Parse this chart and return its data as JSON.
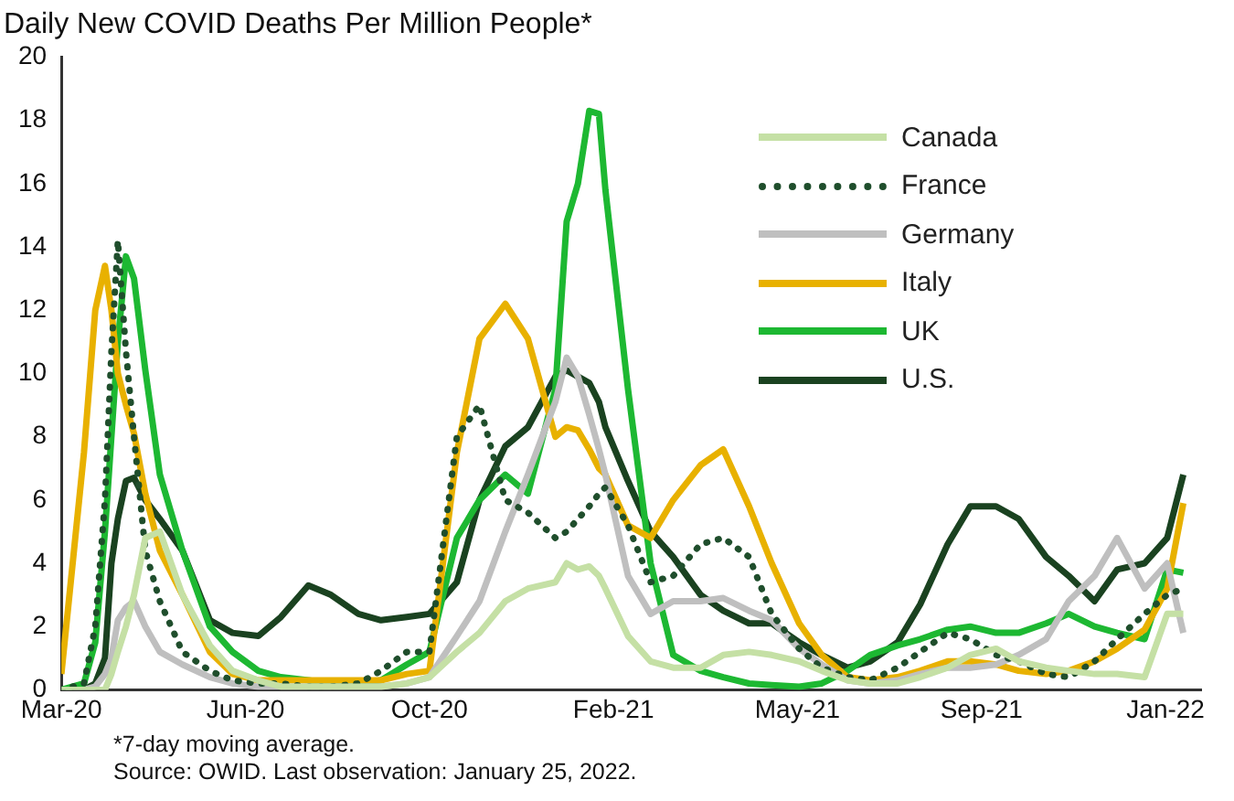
{
  "chart_data": {
    "type": "line",
    "title": "Daily New COVID Deaths Per Million People*",
    "annotations": [
      "*7-day moving average.",
      "Source: OWID. Last observation: January 25, 2022."
    ],
    "x": [
      "2020-03-01",
      "2020-03-15",
      "2020-03-22",
      "2020-03-28",
      "2020-04-01",
      "2020-04-05",
      "2020-04-10",
      "2020-04-15",
      "2020-04-22",
      "2020-05-01",
      "2020-05-15",
      "2020-06-01",
      "2020-06-15",
      "2020-07-01",
      "2020-07-15",
      "2020-08-01",
      "2020-08-15",
      "2020-09-01",
      "2020-09-15",
      "2020-10-01",
      "2020-10-15",
      "2020-11-01",
      "2020-11-15",
      "2020-12-01",
      "2020-12-15",
      "2021-01-01",
      "2021-01-08",
      "2021-01-15",
      "2021-01-22",
      "2021-01-28",
      "2021-02-01",
      "2021-02-15",
      "2021-03-01",
      "2021-03-15",
      "2021-04-01",
      "2021-04-15",
      "2021-05-01",
      "2021-05-15",
      "2021-06-01",
      "2021-06-15",
      "2021-07-01",
      "2021-07-15",
      "2021-08-01",
      "2021-08-15",
      "2021-09-01",
      "2021-09-15",
      "2021-10-01",
      "2021-10-15",
      "2021-11-01",
      "2021-11-15",
      "2021-12-01",
      "2021-12-15",
      "2022-01-01",
      "2022-01-15",
      "2022-01-25"
    ],
    "series": [
      {
        "name": "Canada",
        "color": "#c5e0a5",
        "values": [
          0,
          0,
          0,
          0,
          0.5,
          1.2,
          2.0,
          3.0,
          4.8,
          5.0,
          3.0,
          1.4,
          0.6,
          0.3,
          0.1,
          0.1,
          0.1,
          0.1,
          0.1,
          0.2,
          0.4,
          1.2,
          1.8,
          2.8,
          3.2,
          3.4,
          4.0,
          3.8,
          3.9,
          3.6,
          3.2,
          1.7,
          0.9,
          0.7,
          0.7,
          1.1,
          1.2,
          1.1,
          0.9,
          0.6,
          0.3,
          0.2,
          0.2,
          0.4,
          0.7,
          1.1,
          1.3,
          0.9,
          0.7,
          0.6,
          0.5,
          0.5,
          0.4,
          2.4,
          2.4
        ]
      },
      {
        "name": "France",
        "color": "#1f4e2c",
        "line_style": "dotted",
        "values": [
          0,
          0.2,
          2,
          6,
          10.7,
          14.2,
          10.7,
          8.0,
          4.4,
          2.8,
          1.2,
          0.6,
          0.3,
          0.2,
          0.2,
          0.1,
          0.1,
          0.2,
          0.6,
          1.2,
          1.2,
          8.0,
          9.0,
          6.0,
          5.6,
          4.8,
          5.0,
          5.4,
          5.8,
          6.2,
          6.4,
          5.2,
          3.4,
          3.6,
          4.6,
          4.8,
          4.2,
          2.4,
          1.3,
          0.7,
          0.4,
          0.3,
          0.7,
          1.2,
          1.8,
          1.6,
          1.1,
          0.9,
          0.5,
          0.4,
          0.9,
          1.6,
          2.4,
          3.0,
          3.2
        ]
      },
      {
        "name": "Germany",
        "color": "#bfbfbf",
        "values": [
          0,
          0,
          0.1,
          0.5,
          1.0,
          2.2,
          2.6,
          2.8,
          2.0,
          1.2,
          0.8,
          0.4,
          0.2,
          0.1,
          0.1,
          0.1,
          0.1,
          0.1,
          0.1,
          0.2,
          0.4,
          1.7,
          2.8,
          5.0,
          6.8,
          9.1,
          10.5,
          9.9,
          8.7,
          7.6,
          6.8,
          3.6,
          2.4,
          2.8,
          2.8,
          2.9,
          2.5,
          2.2,
          1.3,
          0.8,
          0.3,
          0.2,
          0.3,
          0.5,
          0.7,
          0.7,
          0.8,
          1.1,
          1.6,
          2.8,
          3.6,
          4.8,
          3.2,
          4.0,
          1.8
        ]
      },
      {
        "name": "Italy",
        "color": "#e8b100",
        "values": [
          0.5,
          7.5,
          12,
          13.4,
          12,
          10,
          9.0,
          8.1,
          6.2,
          4.4,
          3.0,
          1.2,
          0.5,
          0.3,
          0.3,
          0.3,
          0.3,
          0.3,
          0.3,
          0.5,
          0.6,
          7.5,
          11.1,
          12.2,
          11.1,
          8.0,
          8.3,
          8.2,
          7.6,
          7.0,
          6.8,
          5.2,
          4.8,
          6.0,
          7.1,
          7.6,
          5.8,
          4.0,
          2.1,
          1.1,
          0.4,
          0.3,
          0.4,
          0.6,
          0.9,
          0.9,
          0.8,
          0.6,
          0.5,
          0.6,
          0.9,
          1.3,
          1.9,
          3.2,
          5.9
        ]
      },
      {
        "name": "UK",
        "color": "#1db832",
        "values": [
          0,
          0.2,
          1.5,
          5,
          8,
          11,
          13.7,
          13.0,
          10.1,
          6.8,
          4.4,
          2.0,
          1.2,
          0.6,
          0.4,
          0.3,
          0.2,
          0.2,
          0.3,
          0.8,
          1.2,
          4.8,
          6.0,
          6.8,
          6.2,
          9.5,
          14.8,
          16.0,
          18.3,
          18.2,
          15.8,
          9.5,
          4.0,
          1.1,
          0.6,
          0.4,
          0.2,
          0.15,
          0.1,
          0.2,
          0.6,
          1.1,
          1.4,
          1.6,
          1.9,
          2.0,
          1.8,
          1.8,
          2.1,
          2.4,
          2.0,
          1.8,
          1.6,
          3.8,
          3.7
        ]
      },
      {
        "name": "U.S.",
        "color": "#1a4220",
        "values": [
          0,
          0,
          0.2,
          1.0,
          4.0,
          5.4,
          6.6,
          6.7,
          6.0,
          5.4,
          4.4,
          2.2,
          1.8,
          1.7,
          2.3,
          3.3,
          3.0,
          2.4,
          2.2,
          2.3,
          2.4,
          3.4,
          6.0,
          7.7,
          8.3,
          9.9,
          10.1,
          9.9,
          9.7,
          9.1,
          8.3,
          6.6,
          5.0,
          4.2,
          3.0,
          2.5,
          2.1,
          2.1,
          1.5,
          1.1,
          0.7,
          0.9,
          1.5,
          2.7,
          4.6,
          5.8,
          5.8,
          5.4,
          4.2,
          3.6,
          2.8,
          3.8,
          4.0,
          4.8,
          6.8
        ]
      }
    ],
    "xlim": [
      "2020-03-01",
      "2022-02-05"
    ],
    "xticks": [
      {
        "value": "2020-03-01",
        "label": "Mar-20"
      },
      {
        "value": "2020-06-23",
        "label": "Jun-20"
      },
      {
        "value": "2020-10-15",
        "label": "Oct-20"
      },
      {
        "value": "2021-02-06",
        "label": "Feb-21"
      },
      {
        "value": "2021-05-31",
        "label": "May-21"
      },
      {
        "value": "2021-09-22",
        "label": "Sep-21"
      },
      {
        "value": "2022-01-14",
        "label": "Jan-22"
      }
    ],
    "ylim": [
      0,
      20
    ],
    "yticks": [
      0,
      2,
      4,
      6,
      8,
      10,
      12,
      14,
      16,
      18,
      20
    ],
    "grid": false,
    "legend": "top right",
    "marker": "none",
    "line_style": "solid"
  }
}
